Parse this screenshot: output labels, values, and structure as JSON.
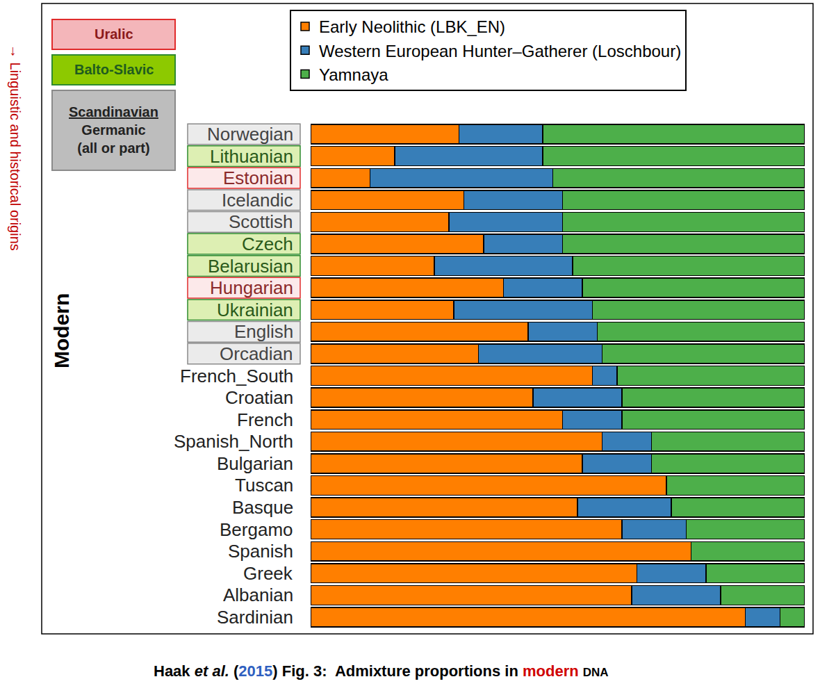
{
  "chart_data": {
    "type": "bar",
    "orientation": "horizontal",
    "stacked": true,
    "categories": [
      "Norwegian",
      "Lithuanian",
      "Estonian",
      "Icelandic",
      "Scottish",
      "Czech",
      "Belarusian",
      "Hungarian",
      "Ukrainian",
      "English",
      "Orcadian",
      "French_South",
      "Croatian",
      "French",
      "Spanish_North",
      "Bulgarian",
      "Tuscan",
      "Basque",
      "Bergamo",
      "Spanish",
      "Greek",
      "Albanian",
      "Sardinian"
    ],
    "series": [
      {
        "name": "Early Neolithic (LBK_EN)",
        "color": "#FF7F00",
        "values": [
          30,
          17,
          12,
          31,
          28,
          35,
          25,
          39,
          29,
          44,
          34,
          57,
          45,
          51,
          59,
          55,
          72,
          54,
          63,
          77,
          66,
          65,
          88
        ]
      },
      {
        "name": "Western European Hunter–Gatherer (Loschbour)",
        "color": "#377EB8",
        "values": [
          17,
          30,
          37,
          20,
          23,
          16,
          28,
          16,
          28,
          14,
          25,
          5,
          18,
          12,
          10,
          14,
          0,
          19,
          13,
          0,
          14,
          18,
          7
        ]
      },
      {
        "name": "Yamnaya",
        "color": "#4DAF4A",
        "values": [
          53,
          53,
          51,
          49,
          49,
          49,
          47,
          45,
          43,
          42,
          41,
          38,
          37,
          37,
          31,
          31,
          28,
          27,
          24,
          23,
          20,
          17,
          5
        ]
      }
    ],
    "xlim": [
      0,
      100
    ],
    "tick_labels": false,
    "grid": false,
    "legend": "top right",
    "groups": [
      {
        "label_lines": [
          "Uralic"
        ],
        "color": "#f4b6ba",
        "members": [
          "Estonian",
          "Hungarian"
        ]
      },
      {
        "label_lines": [
          "Balto-Slavic"
        ],
        "color": "#8dc900",
        "members": [
          "Lithuanian",
          "Czech",
          "Belarusian",
          "Ukrainian"
        ]
      },
      {
        "label_lines": [
          "Scandinavian",
          "Germanic",
          "(all or part)"
        ],
        "color": "#bdbdbd",
        "members": [
          "Norwegian",
          "Icelandic",
          "Scottish",
          "English",
          "Orcadian"
        ]
      }
    ],
    "row_group_label": "Modern",
    "annotations": [
      {
        "text": "→ Linguistic and historical origins"
      }
    ],
    "caption": [
      {
        "text": "Haak "
      },
      {
        "text": "et al.",
        "style": "italic"
      },
      {
        "text": " ("
      },
      {
        "text": "2015",
        "style": "link"
      },
      {
        "text": ") Fig. 3:  Admixture proportions in "
      },
      {
        "text": "modern",
        "style": "highlight"
      },
      {
        "text": " "
      },
      {
        "text": "DNA",
        "style": "smallcaps"
      }
    ]
  }
}
